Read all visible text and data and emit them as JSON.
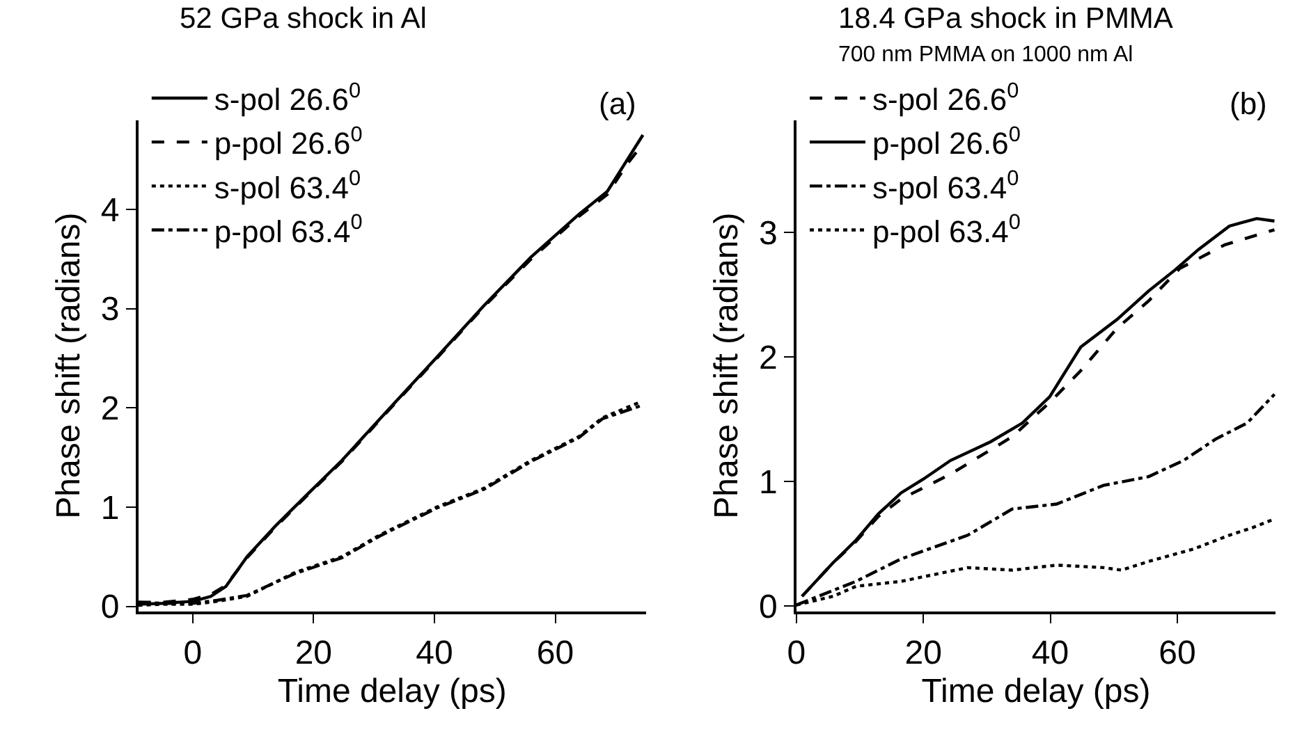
{
  "chart_data": [
    {
      "type": "line",
      "title": "52 GPa shock in Al",
      "xlabel": "Time delay (ps)",
      "ylabel": "Phase shift (radians)",
      "annotations": [
        "(a)"
      ],
      "xlim": [
        -9,
        75
      ],
      "xticks": [
        0,
        20,
        40,
        60
      ],
      "ylim": [
        -0.05,
        4.9
      ],
      "yticks": [
        0,
        1,
        2,
        3,
        4
      ],
      "grid": false,
      "legend": "top left",
      "series": [
        {
          "name": "s-pol 26.6$^{0}$",
          "color": "#000000",
          "line_style": "solid",
          "x": [
            -9,
            -5,
            0,
            3,
            5.5,
            9,
            13.7,
            19,
            24.7,
            32.5,
            40.4,
            48.2,
            56,
            63.9,
            68.6,
            71.8,
            74.5
          ],
          "values": [
            0.02,
            0.03,
            0.05,
            0.1,
            0.2,
            0.5,
            0.81,
            1.13,
            1.47,
            1.99,
            2.51,
            3.03,
            3.52,
            3.95,
            4.18,
            4.49,
            4.75
          ]
        },
        {
          "name": "p-pol 26.6$^{0}$",
          "color": "#000000",
          "line_style": "dashed",
          "x": [
            -9,
            -5,
            0,
            3,
            5.5,
            9,
            13.7,
            19,
            24.7,
            32.5,
            40.4,
            48.2,
            56,
            63.9,
            68.6,
            71.8,
            74.5
          ],
          "values": [
            0.04,
            0.04,
            0.07,
            0.12,
            0.21,
            0.49,
            0.8,
            1.12,
            1.46,
            1.98,
            2.5,
            3.02,
            3.5,
            3.93,
            4.15,
            4.45,
            4.66
          ]
        },
        {
          "name": "s-pol 63.4$^{0}$",
          "color": "#000000",
          "line_style": "dotted",
          "x": [
            -9,
            -5,
            0,
            4,
            9,
            16.9,
            24.7,
            31,
            40.4,
            48.2,
            56,
            63.9,
            67.8,
            74.1
          ],
          "values": [
            0.01,
            0.02,
            0.02,
            0.05,
            0.1,
            0.34,
            0.5,
            0.72,
            1.0,
            1.19,
            1.47,
            1.71,
            1.9,
            2.06
          ]
        },
        {
          "name": "p-pol 63.4$^{0}$",
          "color": "#000000",
          "line_style": "dashdot",
          "x": [
            -9,
            -5,
            0,
            4,
            9,
            16.9,
            24.7,
            31,
            40.4,
            48.2,
            56,
            63.9,
            67.8,
            74.1
          ],
          "values": [
            0.04,
            0.03,
            0.03,
            0.06,
            0.11,
            0.33,
            0.49,
            0.71,
            0.99,
            1.18,
            1.46,
            1.7,
            1.89,
            2.02
          ]
        }
      ]
    },
    {
      "type": "line",
      "title": "18.4 GPa shock in PMMA",
      "subtitle": "700 nm PMMA on 1000 nm Al",
      "xlabel": "Time delay (ps)",
      "ylabel": "Phase shift (radians)",
      "annotations": [
        "(b)"
      ],
      "xlim": [
        0,
        75.5
      ],
      "xticks": [
        0,
        20,
        40,
        60
      ],
      "ylim": [
        -0.04,
        3.9
      ],
      "yticks": [
        0,
        1,
        2,
        3
      ],
      "grid": false,
      "legend": "top left",
      "series": [
        {
          "name": "s-pol 26.6$^{0}$",
          "color": "#000000",
          "line_style": "dashed",
          "x": [
            0.9,
            5.8,
            9.4,
            12.9,
            16.5,
            20,
            24.3,
            34,
            40,
            44.8,
            50.5,
            55.5,
            60.4,
            67.5,
            75.3
          ],
          "values": [
            0.08,
            0.35,
            0.52,
            0.72,
            0.86,
            0.95,
            1.06,
            1.36,
            1.64,
            1.89,
            2.23,
            2.45,
            2.71,
            2.9,
            3.02
          ]
        },
        {
          "name": "p-pol 26.6$^{0}$",
          "color": "#000000",
          "line_style": "solid",
          "x": [
            0.9,
            5.8,
            9.4,
            12.9,
            16.5,
            20,
            24.3,
            30.6,
            35.6,
            39.9,
            44.8,
            50.5,
            55.5,
            59.7,
            63.3,
            68.2,
            72.5,
            75.3
          ],
          "values": [
            0.08,
            0.35,
            0.53,
            0.74,
            0.91,
            1.02,
            1.17,
            1.32,
            1.47,
            1.68,
            2.08,
            2.3,
            2.53,
            2.7,
            2.86,
            3.05,
            3.11,
            3.09
          ]
        },
        {
          "name": "s-pol 63.4$^{0}$",
          "color": "#000000",
          "line_style": "dashdot",
          "x": [
            0,
            9.4,
            16.5,
            27,
            34,
            41,
            48.4,
            55.5,
            61,
            66,
            71,
            75.3
          ],
          "values": [
            0.01,
            0.2,
            0.38,
            0.57,
            0.78,
            0.82,
            0.97,
            1.04,
            1.17,
            1.34,
            1.47,
            1.7
          ]
        },
        {
          "name": "p-pol 63.4$^{0}$",
          "color": "#000000",
          "line_style": "dotted",
          "x": [
            0,
            5.8,
            9.4,
            16.5,
            27,
            34,
            41,
            48.4,
            51.2,
            55.5,
            62.6,
            68.2,
            71.8,
            75.3
          ],
          "values": [
            0.01,
            0.08,
            0.16,
            0.2,
            0.31,
            0.29,
            0.33,
            0.31,
            0.29,
            0.36,
            0.46,
            0.57,
            0.63,
            0.7
          ]
        }
      ]
    }
  ]
}
